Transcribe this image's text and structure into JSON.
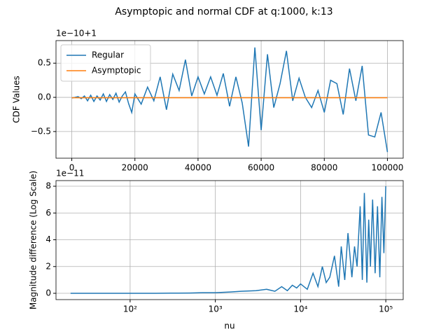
{
  "title": "Asymptopic and normal CDF at q:1000, k:13",
  "chart_data": [
    {
      "type": "line",
      "ylabel": "CDF Values",
      "y_offset_label": "1e−10+1",
      "xlim": [
        -5000,
        105000
      ],
      "xticks": [
        0,
        20000,
        40000,
        60000,
        80000,
        100000
      ],
      "ylim": [
        -0.89,
        0.83
      ],
      "yticks": [
        {
          "value": -0.5,
          "label": "−0.5"
        },
        {
          "value": 0,
          "label": "0.0"
        },
        0.5
      ],
      "log_x": false,
      "grid": true,
      "legend": "upper-left",
      "series": [
        {
          "name": "Regular",
          "color": "#1f77b4",
          "x": [
            0,
            1000,
            2000,
            3000,
            4000,
            5000,
            6000,
            7000,
            8000,
            9000,
            10000,
            11000,
            12000,
            13000,
            14000,
            15000,
            16000,
            17000,
            18000,
            19000,
            20000,
            22000,
            24000,
            26000,
            28000,
            30000,
            32000,
            34000,
            36000,
            38000,
            40000,
            42000,
            44000,
            46000,
            48000,
            50000,
            52000,
            54000,
            56000,
            58000,
            60000,
            62000,
            64000,
            66000,
            68000,
            70000,
            72000,
            74000,
            76000,
            78000,
            80000,
            82000,
            84000,
            86000,
            88000,
            90000,
            92000,
            94000,
            96000,
            98000,
            100000
          ],
          "values": [
            -0.01,
            0.0,
            0.01,
            -0.02,
            0.02,
            -0.05,
            0.03,
            -0.06,
            0.02,
            -0.04,
            0.05,
            -0.06,
            0.04,
            -0.03,
            0.06,
            -0.07,
            0.02,
            0.08,
            -0.09,
            -0.22,
            0.05,
            -0.1,
            0.15,
            -0.05,
            0.3,
            -0.18,
            0.34,
            0.1,
            0.55,
            0.02,
            0.3,
            0.05,
            0.3,
            0.03,
            0.35,
            -0.13,
            0.3,
            -0.08,
            -0.72,
            0.73,
            -0.48,
            0.63,
            -0.15,
            0.2,
            0.68,
            -0.05,
            0.28,
            0.0,
            -0.15,
            0.1,
            -0.22,
            0.25,
            0.2,
            -0.25,
            0.42,
            -0.05,
            0.46,
            -0.55,
            -0.58,
            -0.22,
            -0.8
          ]
        },
        {
          "name": "Asymptopic",
          "color": "#ff7f0e",
          "x": [
            0,
            100000
          ],
          "values": [
            -0.005,
            -0.005
          ]
        }
      ]
    },
    {
      "type": "line",
      "xlabel": "nu",
      "ylabel": "Magnitude difference (Log Scale)",
      "y_offset_label": "1e−11",
      "xlim": [
        13.5,
        160000
      ],
      "xticks": [
        {
          "value": 100,
          "label": "10²"
        },
        {
          "value": 1000,
          "label": "10³"
        },
        {
          "value": 10000,
          "label": "10⁴"
        },
        {
          "value": 100000,
          "label": "10⁵"
        }
      ],
      "ylim": [
        -0.47,
        8.42
      ],
      "yticks": [
        0,
        2,
        4,
        6,
        8
      ],
      "log_x": true,
      "grid": true,
      "series": [
        {
          "color": "#1f77b4",
          "x": [
            20,
            40,
            70,
            100,
            150,
            200,
            300,
            500,
            700,
            1000,
            1500,
            2000,
            3000,
            4000,
            5000,
            6000,
            7000,
            8000,
            9000,
            10000,
            12000,
            14000,
            16000,
            18000,
            20000,
            22000,
            25000,
            28000,
            30000,
            33000,
            36000,
            40000,
            43000,
            46000,
            50000,
            53000,
            56000,
            60000,
            63000,
            66000,
            70000,
            75000,
            80000,
            85000,
            90000,
            95000,
            100000
          ],
          "values": [
            0,
            0,
            0,
            0,
            0,
            0,
            0.01,
            0.02,
            0.05,
            0.05,
            0.1,
            0.15,
            0.2,
            0.3,
            0.15,
            0.5,
            0.2,
            0.6,
            0.4,
            0.7,
            0.3,
            1.5,
            0.5,
            2.0,
            0.8,
            1.2,
            2.8,
            0.5,
            3.5,
            1.0,
            4.5,
            1.2,
            3.5,
            2.0,
            6.5,
            1.0,
            7.5,
            0.8,
            5.5,
            2.0,
            7.0,
            1.5,
            6.5,
            1.2,
            7.2,
            3.0,
            8.0
          ]
        }
      ]
    }
  ]
}
